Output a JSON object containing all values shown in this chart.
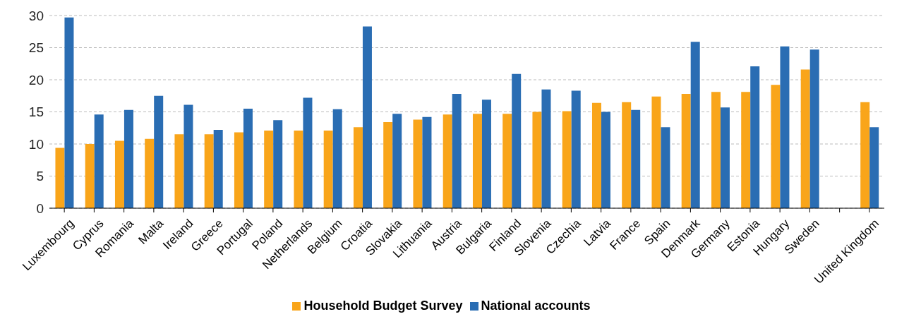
{
  "chart_data": {
    "type": "bar",
    "categories": [
      "Luxembourg",
      "Cyprus",
      "Romania",
      "Malta",
      "Ireland",
      "Greece",
      "Portugal",
      "Poland",
      "Netherlands",
      "Belgium",
      "Croatia",
      "Slovakia",
      "Lithuania",
      "Austria",
      "Bulgaria",
      "Finland",
      "Slovenia",
      "Czechia",
      "Latvia",
      "France",
      "Spain",
      "Denmark",
      "Germany",
      "Estonia",
      "Hungary",
      "Sweden",
      null,
      "United Kingdom"
    ],
    "series": [
      {
        "name": "Household Budget Survey",
        "color": "#f9a51a",
        "values": [
          9.4,
          10.0,
          10.5,
          10.8,
          11.5,
          11.5,
          11.8,
          12.1,
          12.1,
          12.1,
          12.6,
          13.4,
          13.8,
          14.6,
          14.7,
          14.7,
          15.0,
          15.1,
          16.4,
          16.5,
          17.4,
          17.8,
          18.1,
          18.1,
          19.2,
          21.6,
          null,
          16.5
        ]
      },
      {
        "name": "National accounts",
        "color": "#2a6db3",
        "values": [
          29.7,
          14.6,
          15.3,
          17.5,
          16.1,
          12.2,
          15.5,
          13.7,
          17.2,
          15.4,
          28.3,
          14.7,
          14.2,
          17.8,
          16.9,
          20.9,
          18.5,
          18.3,
          15.0,
          15.3,
          12.6,
          25.9,
          15.7,
          22.1,
          25.2,
          24.7,
          null,
          12.6
        ]
      }
    ],
    "ylim": [
      0,
      30
    ],
    "yticks": [
      0,
      5,
      10,
      15,
      20,
      25,
      30
    ],
    "grid": "y",
    "legend": "bottom"
  }
}
